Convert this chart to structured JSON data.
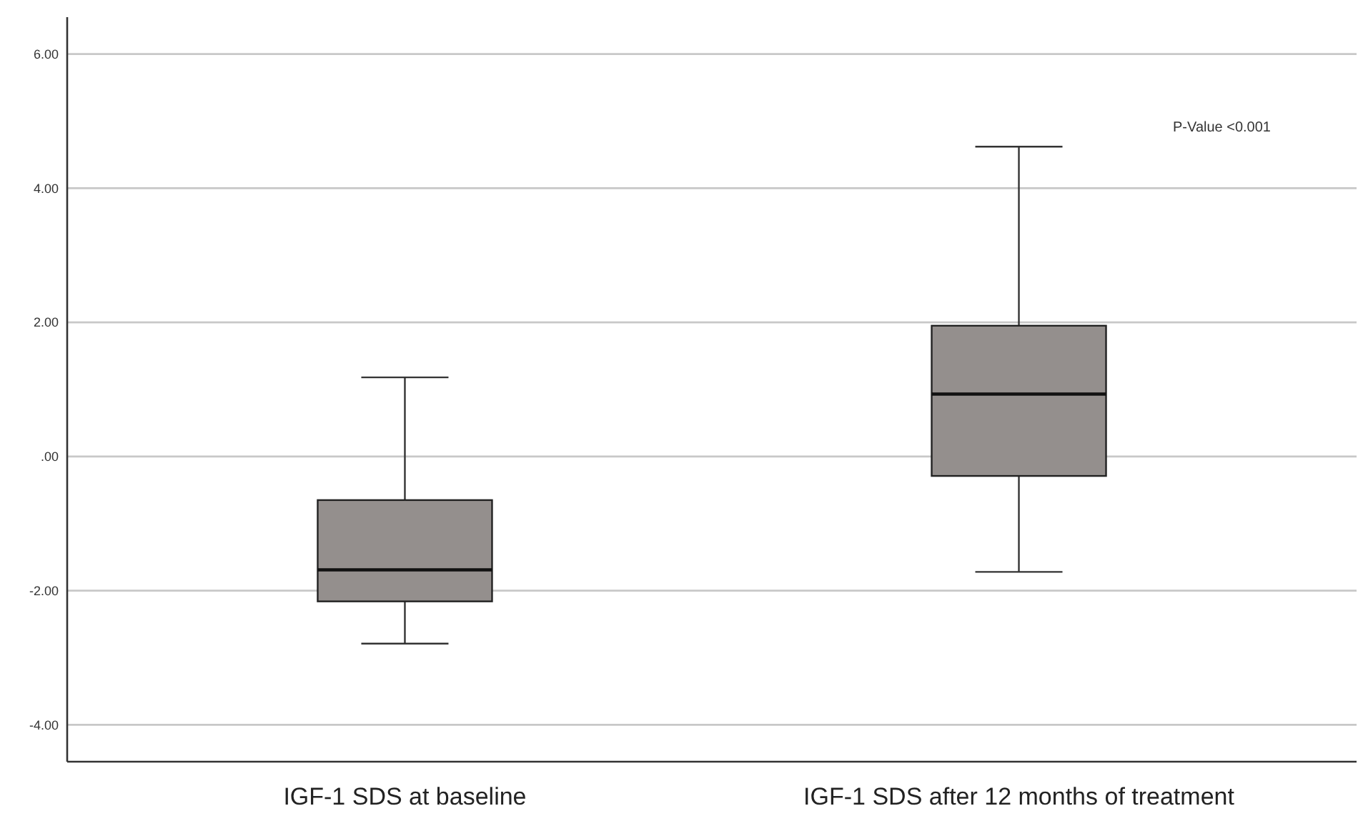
{
  "chart_data": {
    "type": "box",
    "categories": [
      "IGF-1 SDS at baseline",
      "IGF-1 SDS after 12 months of treatment"
    ],
    "boxes": [
      {
        "low": -2.79,
        "q1": -2.16,
        "median": -1.69,
        "q3": -0.65,
        "high": 1.18
      },
      {
        "low": -1.72,
        "q1": -0.29,
        "median": 0.93,
        "q3": 1.95,
        "high": 4.62
      }
    ],
    "color": "#948f8d",
    "ylim": [
      -4.55,
      6.55
    ],
    "yticks": [
      {
        "value": -4,
        "label": "-4.00"
      },
      {
        "value": -2,
        "label": "-2.00"
      },
      {
        "value": 0,
        "label": ".00"
      },
      {
        "value": 2,
        "label": "2.00"
      },
      {
        "value": 4,
        "label": "4.00"
      },
      {
        "value": 6,
        "label": "6.00"
      }
    ],
    "grid": "y",
    "annotations": [
      "P-Value <0.001"
    ]
  }
}
